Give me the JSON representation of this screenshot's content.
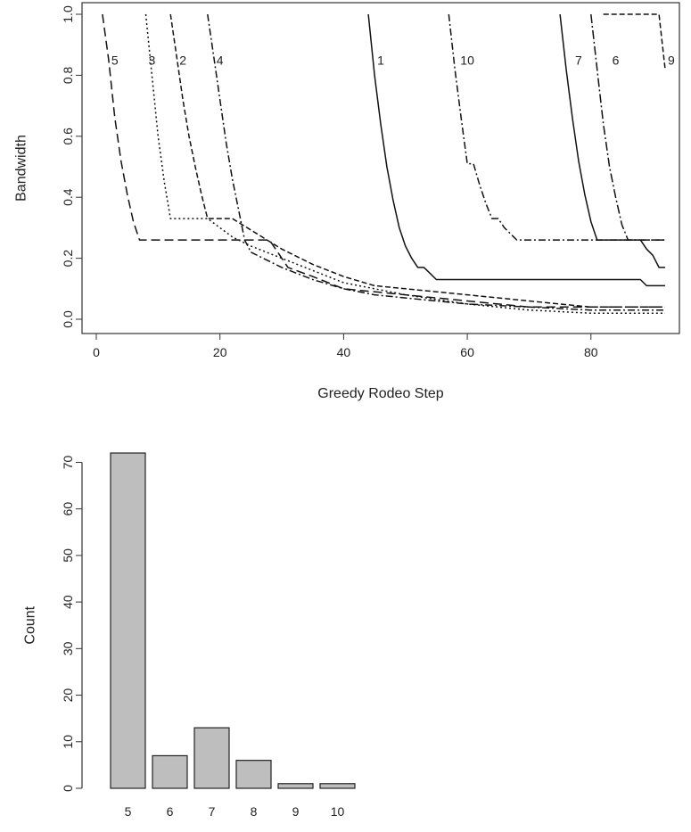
{
  "chart_data": [
    {
      "type": "line",
      "title": "",
      "xlabel": "Greedy Rodeo Step",
      "ylabel": "Bandwidth",
      "xlim": [
        0,
        92
      ],
      "ylim": [
        0,
        1
      ],
      "xticks": [
        "0",
        "20",
        "40",
        "60",
        "80"
      ],
      "yticks": [
        "0.0",
        "0.2",
        "0.4",
        "0.6",
        "0.8",
        "1.0"
      ],
      "grid": false,
      "legend": "none",
      "series": [
        {
          "name": "5",
          "label_x": 3,
          "label_y": 0.85,
          "dash": "10 5",
          "x": [
            1,
            2,
            3,
            4,
            5,
            6,
            7,
            28,
            29,
            30,
            31,
            35,
            40,
            50,
            60,
            70,
            92
          ],
          "y": [
            1.0,
            0.85,
            0.66,
            0.52,
            0.41,
            0.32,
            0.26,
            0.26,
            0.23,
            0.2,
            0.17,
            0.14,
            0.1,
            0.08,
            0.06,
            0.04,
            0.04
          ]
        },
        {
          "name": "3",
          "label_x": 9,
          "label_y": 0.85,
          "dash": "2 3",
          "x": [
            8,
            9,
            10,
            11,
            12,
            18,
            20,
            22,
            25,
            30,
            35,
            40,
            50,
            60,
            70,
            80,
            92
          ],
          "y": [
            1.0,
            0.8,
            0.6,
            0.45,
            0.33,
            0.33,
            0.3,
            0.27,
            0.24,
            0.2,
            0.16,
            0.12,
            0.08,
            0.05,
            0.03,
            0.02,
            0.02
          ]
        },
        {
          "name": "2",
          "label_x": 14,
          "label_y": 0.85,
          "dash": "6 3",
          "x": [
            12,
            13,
            14,
            15,
            16,
            17,
            18,
            22,
            26,
            30,
            35,
            40,
            45,
            50,
            55,
            60,
            70,
            80,
            92
          ],
          "y": [
            1.0,
            0.86,
            0.72,
            0.6,
            0.5,
            0.41,
            0.33,
            0.33,
            0.28,
            0.23,
            0.18,
            0.14,
            0.11,
            0.1,
            0.09,
            0.08,
            0.06,
            0.04,
            0.04
          ]
        },
        {
          "name": "4",
          "label_x": 20,
          "label_y": 0.85,
          "dash": "8 3 2 3",
          "x": [
            18,
            19,
            20,
            21,
            22,
            23,
            24,
            25,
            30,
            35,
            40,
            45,
            50,
            55,
            60,
            70,
            80,
            92
          ],
          "y": [
            1.0,
            0.86,
            0.72,
            0.58,
            0.46,
            0.36,
            0.26,
            0.22,
            0.17,
            0.13,
            0.1,
            0.08,
            0.07,
            0.06,
            0.05,
            0.04,
            0.03,
            0.03
          ]
        },
        {
          "name": "1",
          "label_x": 46,
          "label_y": 0.85,
          "dash": "",
          "x": [
            44,
            45,
            46,
            47,
            48,
            49,
            50,
            51,
            52,
            53,
            54,
            55,
            88,
            89,
            92
          ],
          "y": [
            1.0,
            0.8,
            0.64,
            0.5,
            0.39,
            0.3,
            0.24,
            0.2,
            0.17,
            0.17,
            0.15,
            0.13,
            0.13,
            0.11,
            0.11
          ]
        },
        {
          "name": "10",
          "label_x": 60,
          "label_y": 0.85,
          "dash": "8 3 2 3",
          "x": [
            57,
            58,
            59,
            60,
            61,
            62,
            63,
            64,
            65,
            66,
            67,
            68,
            92
          ],
          "y": [
            1.0,
            0.82,
            0.66,
            0.51,
            0.51,
            0.44,
            0.38,
            0.33,
            0.33,
            0.3,
            0.28,
            0.26,
            0.26
          ]
        },
        {
          "name": "7",
          "label_x": 78,
          "label_y": 0.85,
          "dash": "",
          "x": [
            75,
            76,
            77,
            78,
            79,
            80,
            81,
            88,
            89,
            90,
            91,
            92
          ],
          "y": [
            1.0,
            0.82,
            0.66,
            0.52,
            0.41,
            0.32,
            0.26,
            0.26,
            0.23,
            0.21,
            0.17,
            0.17
          ]
        },
        {
          "name": "6",
          "label_x": 84,
          "label_y": 0.85,
          "dash": "10 3 2 3",
          "x": [
            80,
            81,
            82,
            83,
            84,
            85,
            86,
            92
          ],
          "y": [
            1.0,
            0.82,
            0.64,
            0.5,
            0.4,
            0.31,
            0.26,
            0.26
          ]
        },
        {
          "name": "9",
          "label_x": 93,
          "label_y": 0.85,
          "dash": "6 3",
          "x": [
            82,
            91,
            92
          ],
          "y": [
            1.0,
            1.0,
            0.82
          ]
        }
      ]
    },
    {
      "type": "bar",
      "title": "",
      "xlabel": "",
      "ylabel": "Count",
      "ylim": [
        0,
        72
      ],
      "yticks": [
        "0",
        "10",
        "20",
        "30",
        "40",
        "50",
        "60",
        "70"
      ],
      "categories": [
        "5",
        "6",
        "7",
        "8",
        "9",
        "10"
      ],
      "values": [
        72,
        7,
        13,
        6,
        1,
        1
      ],
      "bar_color": "#bebebe",
      "legend": "none"
    }
  ]
}
